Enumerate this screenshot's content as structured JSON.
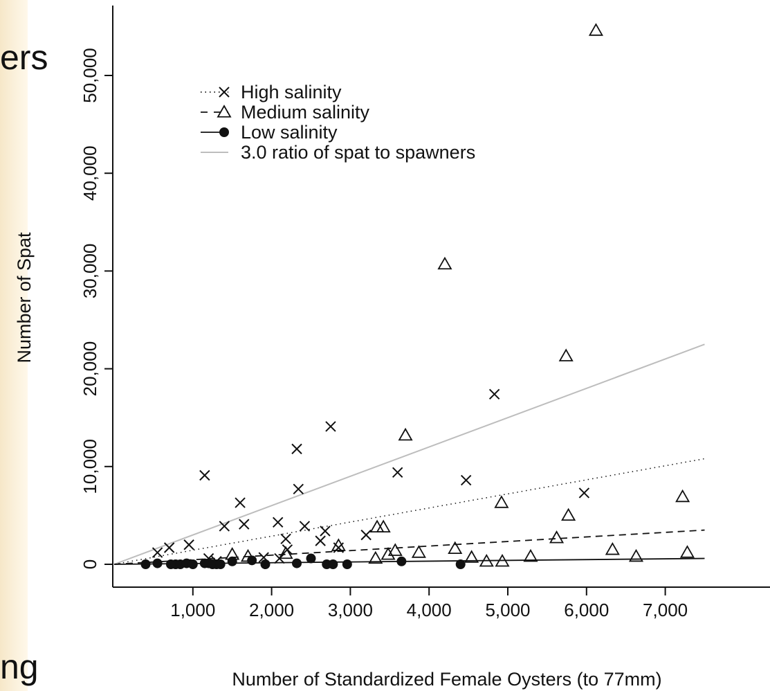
{
  "slide_fragments": {
    "top": "ers",
    "bottom": "ng"
  },
  "chart_data": {
    "type": "scatter",
    "xlabel": "Number of Standardized Female Oysters (to 77mm)",
    "ylabel": "Number of Spat",
    "xlim": [
      0,
      7500
    ],
    "ylim": [
      -2000,
      57000
    ],
    "xticks": [
      1000,
      2000,
      3000,
      4000,
      5000,
      6000,
      7000
    ],
    "xtick_labels": [
      "1,000",
      "2,000",
      "3,000",
      "4,000",
      "5,000",
      "6,000",
      "7,000"
    ],
    "yticks": [
      0,
      10000,
      20000,
      30000,
      40000,
      50000
    ],
    "ytick_labels": [
      "0",
      "10,000",
      "20,000",
      "30,000",
      "40,000",
      "50,000"
    ],
    "grid": false,
    "legend_position": "top-left",
    "legend": [
      {
        "label": "High salinity",
        "marker": "x",
        "line": "dotted"
      },
      {
        "label": "Medium salinity",
        "marker": "triangle",
        "line": "dashed"
      },
      {
        "label": "Low salinity",
        "marker": "filled-circle",
        "line": "solid"
      },
      {
        "label": "3.0 ratio of spat to spawners",
        "marker": "none",
        "line": "solid-gray"
      }
    ],
    "colors": {
      "ink": "#111111",
      "ratio_line": "#bdbdbd"
    },
    "series": [
      {
        "name": "High salinity",
        "marker": "x",
        "x": [
          550,
          700,
          950,
          1150,
          1200,
          1300,
          1400,
          1600,
          1650,
          1900,
          2080,
          2100,
          2180,
          2200,
          2320,
          2340,
          2420,
          2620,
          2680,
          2750,
          2850,
          3200,
          3600,
          4470,
          4830,
          5970
        ],
        "y": [
          1200,
          1700,
          2000,
          9100,
          600,
          300,
          3900,
          6300,
          4100,
          700,
          4300,
          600,
          2600,
          1500,
          11800,
          7700,
          3900,
          2400,
          3400,
          14100,
          1700,
          3000,
          9400,
          8600,
          17400,
          7300
        ],
        "fit": {
          "x": [
            0,
            7500
          ],
          "y": [
            0,
            10800
          ]
        }
      },
      {
        "name": "Medium salinity",
        "marker": "triangle",
        "x": [
          1500,
          1700,
          2180,
          2850,
          3320,
          3340,
          3420,
          3480,
          3570,
          3700,
          3870,
          4200,
          4330,
          4540,
          4730,
          4920,
          4930,
          5290,
          5620,
          5740,
          5770,
          6120,
          6330,
          6630,
          7220,
          7280
        ],
        "y": [
          1000,
          800,
          1100,
          1900,
          600,
          3800,
          3800,
          1000,
          1400,
          13200,
          1200,
          30700,
          1600,
          700,
          300,
          6300,
          300,
          800,
          2700,
          21300,
          5000,
          54600,
          1500,
          800,
          6900,
          1200
        ],
        "fit": {
          "x": [
            0,
            7500
          ],
          "y": [
            0,
            3500
          ]
        }
      },
      {
        "name": "Low salinity",
        "marker": "filled-circle",
        "x": [
          400,
          550,
          720,
          780,
          840,
          920,
          1000,
          1150,
          1200,
          1250,
          1300,
          1350,
          1500,
          1750,
          1920,
          2320,
          2500,
          2700,
          2780,
          2960,
          3650,
          4400
        ],
        "y": [
          0,
          100,
          0,
          0,
          0,
          100,
          0,
          100,
          100,
          0,
          0,
          0,
          300,
          400,
          0,
          100,
          600,
          0,
          0,
          0,
          300,
          0
        ],
        "fit": {
          "x": [
            0,
            7500
          ],
          "y": [
            0,
            600
          ]
        }
      }
    ],
    "reference_lines": [
      {
        "name": "3.0 ratio of spat to spawners",
        "x": [
          0,
          7500
        ],
        "y": [
          0,
          22500
        ]
      }
    ]
  }
}
